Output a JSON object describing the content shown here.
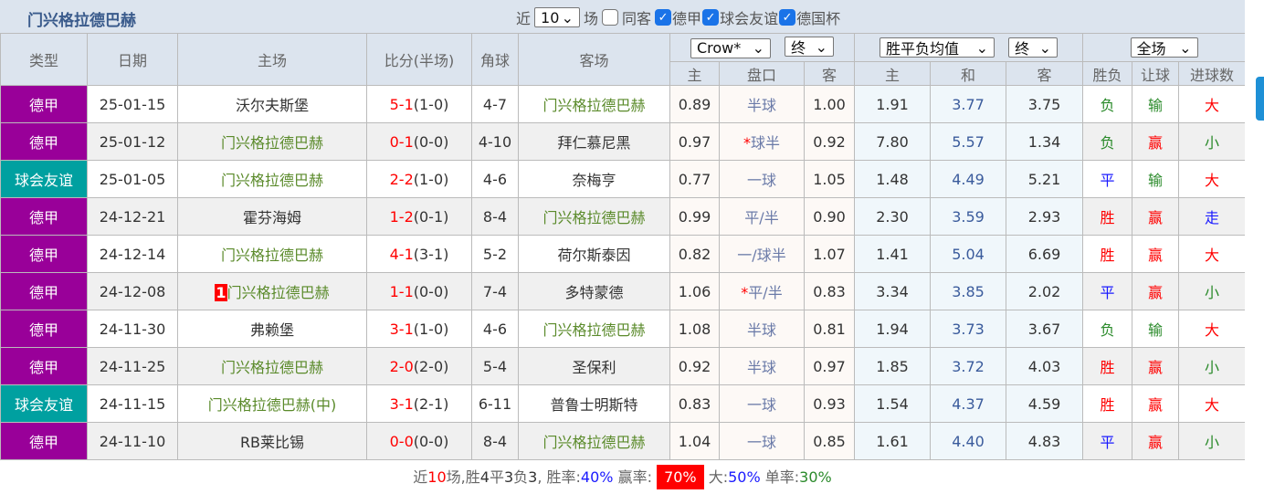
{
  "title": "门兴格拉德巴赫",
  "filters": {
    "near": "近",
    "count": "10",
    "unit": "场",
    "same_away": "同客",
    "leagues": [
      {
        "label": "德甲",
        "checked": true
      },
      {
        "label": "球会友谊",
        "checked": true
      },
      {
        "label": "德国杯",
        "checked": true
      }
    ]
  },
  "headers": {
    "type": "类型",
    "date": "日期",
    "home": "主场",
    "score": "比分(半场)",
    "corners": "角球",
    "away": "客场",
    "company": "Crow*",
    "odds_stage": "终",
    "euro_type": "胜平负均值",
    "euro_stage": "终",
    "period": "全场",
    "ah_home": "主",
    "ah_line": "盘口",
    "ah_away": "客",
    "eu_home": "主",
    "eu_draw": "和",
    "eu_away": "客",
    "result": "胜负",
    "handicap": "让球",
    "goals": "进球数"
  },
  "colors": {
    "league_bundesliga": "#990099",
    "league_friendly": "#00a0a0",
    "win": "#ff0000",
    "loss": "#2a8a2a",
    "draw": "#1a1aff"
  },
  "rows": [
    {
      "type": "德甲",
      "date": "25-01-15",
      "home": "沃尔夫斯堡",
      "score": "5-1",
      "half": "(1-0)",
      "corners": "4-7",
      "away": "门兴格拉德巴赫",
      "ah_h": "0.89",
      "line": "半球",
      "ah_a": "1.00",
      "eh": "1.91",
      "ed": "3.77",
      "ea": "3.75",
      "res": "负",
      "hc": "输",
      "goals": "大",
      "focus": "away"
    },
    {
      "type": "德甲",
      "date": "25-01-12",
      "home": "门兴格拉德巴赫",
      "score": "0-1",
      "half": "(0-0)",
      "corners": "4-10",
      "away": "拜仁慕尼黑",
      "ah_h": "0.97",
      "line_star": "*",
      "line": "球半",
      "ah_a": "0.92",
      "eh": "7.80",
      "ed": "5.57",
      "ea": "1.34",
      "res": "负",
      "hc": "赢",
      "goals": "小",
      "focus": "home"
    },
    {
      "type": "球会友谊",
      "date": "25-01-05",
      "home": "门兴格拉德巴赫",
      "score": "2-2",
      "half": "(1-0)",
      "corners": "4-6",
      "away": "奈梅亨",
      "ah_h": "0.77",
      "line": "一球",
      "ah_a": "1.05",
      "eh": "1.48",
      "ed": "4.49",
      "ea": "5.21",
      "res": "平",
      "hc": "输",
      "goals": "大",
      "focus": "home"
    },
    {
      "type": "德甲",
      "date": "24-12-21",
      "home": "霍芬海姆",
      "score": "1-2",
      "half": "(0-1)",
      "corners": "8-4",
      "away": "门兴格拉德巴赫",
      "ah_h": "0.99",
      "line": "平/半",
      "ah_a": "0.90",
      "eh": "2.30",
      "ed": "3.59",
      "ea": "2.93",
      "res": "胜",
      "hc": "赢",
      "goals": "走",
      "focus": "away"
    },
    {
      "type": "德甲",
      "date": "24-12-14",
      "home": "门兴格拉德巴赫",
      "score": "4-1",
      "half": "(3-1)",
      "corners": "5-2",
      "away": "荷尔斯泰因",
      "ah_h": "0.82",
      "line": "一/球半",
      "ah_a": "1.07",
      "eh": "1.41",
      "ed": "5.04",
      "ea": "6.69",
      "res": "胜",
      "hc": "赢",
      "goals": "大",
      "focus": "home"
    },
    {
      "type": "德甲",
      "date": "24-12-08",
      "home_badge": "1",
      "home": "门兴格拉德巴赫",
      "score": "1-1",
      "half": "(0-0)",
      "corners": "7-4",
      "away": "多特蒙德",
      "ah_h": "1.06",
      "line_star": "*",
      "line": "平/半",
      "ah_a": "0.83",
      "eh": "3.34",
      "ed": "3.85",
      "ea": "2.02",
      "res": "平",
      "hc": "赢",
      "goals": "小",
      "focus": "home"
    },
    {
      "type": "德甲",
      "date": "24-11-30",
      "home": "弗赖堡",
      "score": "3-1",
      "half": "(1-0)",
      "corners": "4-6",
      "away": "门兴格拉德巴赫",
      "ah_h": "1.08",
      "line": "半球",
      "ah_a": "0.81",
      "eh": "1.94",
      "ed": "3.73",
      "ea": "3.67",
      "res": "负",
      "hc": "输",
      "goals": "大",
      "focus": "away"
    },
    {
      "type": "德甲",
      "date": "24-11-25",
      "home": "门兴格拉德巴赫",
      "score": "2-0",
      "half": "(2-0)",
      "corners": "5-4",
      "away": "圣保利",
      "ah_h": "0.92",
      "line": "半球",
      "ah_a": "0.97",
      "eh": "1.85",
      "ed": "3.72",
      "ea": "4.03",
      "res": "胜",
      "hc": "赢",
      "goals": "小",
      "focus": "home"
    },
    {
      "type": "球会友谊",
      "date": "24-11-15",
      "home": "门兴格拉德巴赫(中)",
      "score": "3-1",
      "half": "(2-1)",
      "corners": "6-11",
      "away": "普鲁士明斯特",
      "ah_h": "0.83",
      "line": "一球",
      "ah_a": "0.93",
      "eh": "1.54",
      "ed": "4.37",
      "ea": "4.59",
      "res": "胜",
      "hc": "赢",
      "goals": "大",
      "focus": "home"
    },
    {
      "type": "德甲",
      "date": "24-11-10",
      "home": "RB莱比锡",
      "score": "0-0",
      "half": "(0-0)",
      "corners": "8-4",
      "away": "门兴格拉德巴赫",
      "ah_h": "1.04",
      "line": "一球",
      "ah_a": "0.85",
      "eh": "1.61",
      "ed": "4.40",
      "ea": "4.83",
      "res": "平",
      "hc": "赢",
      "goals": "小",
      "focus": "away"
    }
  ],
  "footer": {
    "p1": "近",
    "n": "10",
    "p2": "场,胜",
    "w": "4",
    "p3": "平",
    "d": "3",
    "p4": "负",
    "l": "3",
    "p5": ", 胜率:",
    "win_rate": "40%",
    "p6": " 赢率:",
    "hc_rate": "70%",
    "p7": " 大:",
    "big_rate": "50%",
    "p8": " 单率:",
    "odd_rate": "30%"
  }
}
